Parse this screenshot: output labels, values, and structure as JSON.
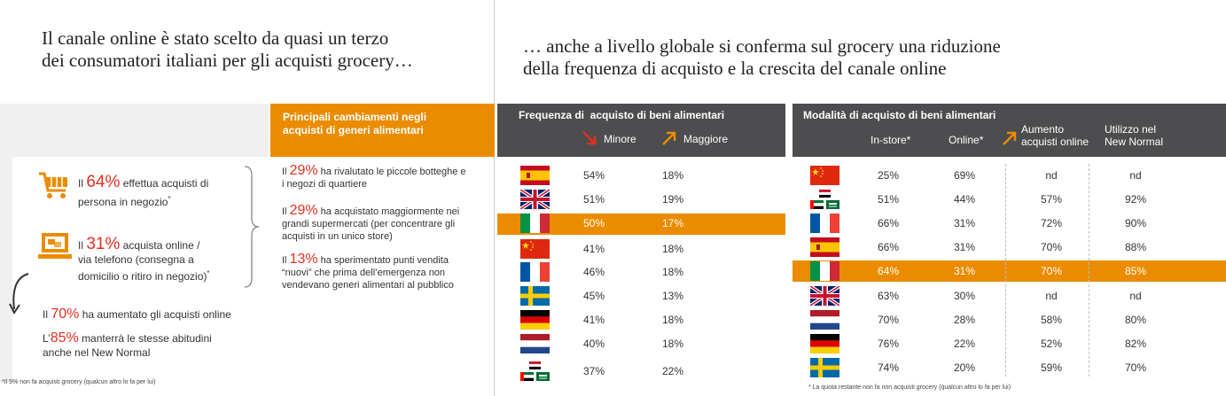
{
  "left": {
    "title_line1": "Il canale online è stato scelto da quasi un terzo",
    "title_line2": "dei consumatori italiani per gli acquisti grocery…",
    "stat1": {
      "pre": "Il",
      "value": "64%",
      "text1": "effettua acquisti di",
      "text2": "persona in negozio",
      "sup": "*"
    },
    "stat2": {
      "pre": "Il",
      "value": "31%",
      "text1": "acquista online /",
      "text2": "via telefono (consegna a",
      "text3": "domicilio o ritiro in negozio)",
      "sup": "*"
    },
    "stat3": {
      "pre": "Il",
      "value": "70%",
      "text": "ha aumentato gli acquisti online"
    },
    "stat4": {
      "pre": "L’",
      "value": "85%",
      "text1": "manterrà le stesse abitudini",
      "text2": "anche nel New Normal"
    },
    "footnote": "*Il 5% non fa acquisti grocery (qualcun altro lo fa per lui)",
    "changes_header_line1": "Principali cambiamenti negli",
    "changes_header_line2": "acquisti di generi alimentari",
    "changes": [
      {
        "pre": "Il",
        "value": "29%",
        "line1": "ha rivalutato le piccole botteghe e",
        "line2": "i negozi di quartiere"
      },
      {
        "pre": "Il",
        "value": "29%",
        "line1": "ha acquistato maggiormente nei",
        "line2": "grandi supermercati (per concentrare gli",
        "line3": "acquisti in un unico store)"
      },
      {
        "pre": "Il",
        "value": "13%",
        "line1": "ha sperimentato punti vendita",
        "line2": "“nuovi” che prima dell’emergenza non",
        "line3": "vendevano generi alimentari al pubblico"
      }
    ]
  },
  "right": {
    "title_line1": "… anche a livello globale si conferma sul grocery una riduzione",
    "title_line2": "della frequenza di acquisto e la crescita del canale online",
    "freq": {
      "header": "Frequenza di  acquisto di beni alimentari",
      "col_minore": "Minore",
      "col_maggiore": "Maggiore",
      "rows": [
        {
          "flag": "spain-flag",
          "minore": "54%",
          "maggiore": "18%"
        },
        {
          "flag": "uk-flag",
          "minore": "51%",
          "maggiore": "19%"
        },
        {
          "flag": "italy-flag",
          "minore": "50%",
          "maggiore": "17%"
        },
        {
          "flag": "china-flag",
          "minore": "41%",
          "maggiore": "18%"
        },
        {
          "flag": "france-flag",
          "minore": "46%",
          "maggiore": "18%"
        },
        {
          "flag": "sweden-flag",
          "minore": "45%",
          "maggiore": "13%"
        },
        {
          "flag": "germany-flag",
          "minore": "41%",
          "maggiore": "18%"
        },
        {
          "flag": "netherlands-flag",
          "minore": "40%",
          "maggiore": "18%"
        },
        {
          "flag": "middle-east-flag",
          "minore": "37%",
          "maggiore": "22%"
        }
      ]
    },
    "mod": {
      "header": "Modalità di acquisto di beni alimentari",
      "col_instore": "In-store*",
      "col_online": "Online*",
      "col_aumento_1": "Aumento",
      "col_aumento_2": "acquisti online",
      "col_utilizzo_1": "Utilizzo nel",
      "col_utilizzo_2": "New Normal",
      "rows": [
        {
          "flag": "china-flag",
          "instore": "25%",
          "online": "69%",
          "aumento": "nd",
          "utilizzo": "nd"
        },
        {
          "flag": "middle-east-flag",
          "instore": "51%",
          "online": "44%",
          "aumento": "57%",
          "utilizzo": "92%"
        },
        {
          "flag": "france-flag",
          "instore": "66%",
          "online": "31%",
          "aumento": "72%",
          "utilizzo": "90%"
        },
        {
          "flag": "spain-flag",
          "instore": "66%",
          "online": "31%",
          "aumento": "70%",
          "utilizzo": "88%"
        },
        {
          "flag": "italy-flag",
          "instore": "64%",
          "online": "31%",
          "aumento": "70%",
          "utilizzo": "85%"
        },
        {
          "flag": "uk-flag",
          "instore": "63%",
          "online": "30%",
          "aumento": "nd",
          "utilizzo": "nd"
        },
        {
          "flag": "netherlands-flag",
          "instore": "70%",
          "online": "28%",
          "aumento": "58%",
          "utilizzo": "80%"
        },
        {
          "flag": "germany-flag",
          "instore": "76%",
          "online": "22%",
          "aumento": "52%",
          "utilizzo": "82%"
        },
        {
          "flag": "sweden-flag",
          "instore": "74%",
          "online": "20%",
          "aumento": "59%",
          "utilizzo": "70%"
        }
      ],
      "footnote": "* La quota restante non fa non acquisti grocery (qualcun altro lo fa per lui)"
    }
  },
  "colors": {
    "orange": "#eb8c00",
    "red": "#e0301e",
    "grey": "#4d4d4f"
  }
}
